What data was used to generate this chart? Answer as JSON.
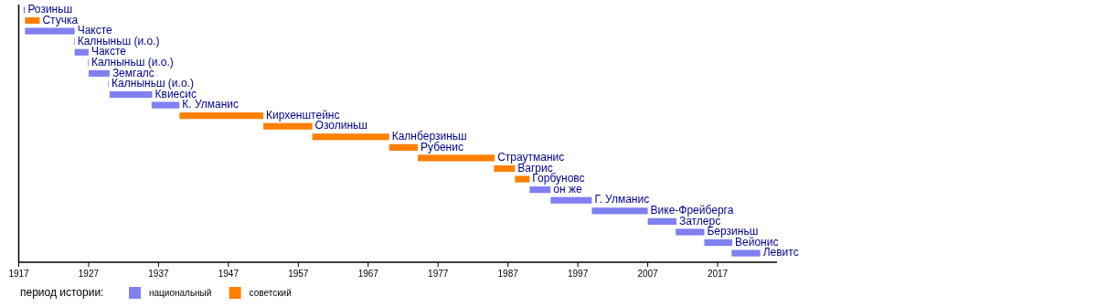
{
  "chart_data": {
    "type": "bar",
    "orientation": "horizontal",
    "legend_title": "период истории:",
    "legend": "bottom left",
    "grid": false,
    "tick_labels": "x",
    "categories": [
      "Розиньш",
      "Стучка",
      "Чаксте",
      "Калныньш (и.о.)",
      "Чаксте",
      "Калныньш (и.о.)",
      "Земгалс",
      "Калныньш (и.о.)",
      "Квиесис",
      "К. Улманис",
      "Кирхенштейнс",
      "Озолиньш",
      "Калнберзиньш",
      "Рубенис",
      "Страутманис",
      "Вагрис",
      "Горбуновс",
      "он же",
      "Г. Улманис",
      "Вике-Фрейберга",
      "Затлерс",
      "Берзиньш",
      "Вейонис",
      "Левитс"
    ],
    "series": [
      {
        "name": "национальный",
        "color": "#8080f0",
        "base": [
          1917.7,
          null,
          1917.9,
          1924.9,
          1925.0,
          1926.9,
          1927.0,
          1929.8,
          1930.0,
          1936.0,
          null,
          null,
          null,
          null,
          null,
          null,
          null,
          1990.1,
          1993.1,
          1999.0,
          2007.0,
          2011.0,
          2015.1,
          2019.0
        ],
        "values": [
          0.2,
          null,
          7.1,
          0.1,
          2.0,
          0.1,
          3.0,
          0.1,
          6.1,
          4.0,
          null,
          null,
          null,
          null,
          null,
          null,
          null,
          3.0,
          5.9,
          8.0,
          4.1,
          4.1,
          4.0,
          4.1
        ]
      },
      {
        "name": "советский",
        "color": "#ff8000",
        "base": [
          null,
          1917.9,
          null,
          null,
          null,
          null,
          null,
          null,
          null,
          null,
          1940.0,
          1952.0,
          1959.0,
          1970.0,
          1974.1,
          1985.0,
          1988.0,
          null,
          null,
          null,
          null,
          null,
          null,
          null
        ],
        "values": [
          null,
          2.1,
          null,
          null,
          null,
          null,
          null,
          null,
          null,
          null,
          12.0,
          7.0,
          11.0,
          4.1,
          11.0,
          3.0,
          2.1,
          null,
          null,
          null,
          null,
          null,
          null,
          null
        ]
      }
    ],
    "xlim": [
      1917,
      2025.5
    ],
    "xticks": [
      1917,
      1927,
      1937,
      1947,
      1957,
      1967,
      1977,
      1987,
      1997,
      2007,
      2017
    ]
  }
}
